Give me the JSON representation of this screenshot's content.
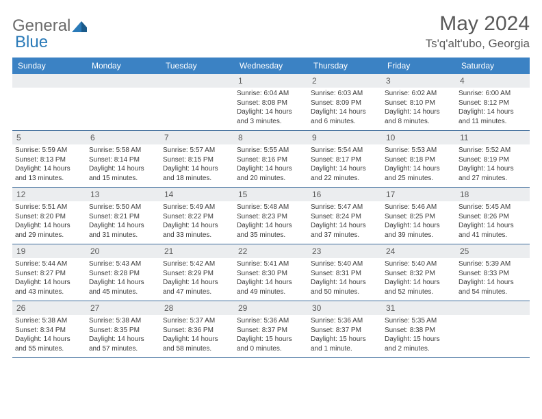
{
  "brand": {
    "general": "General",
    "blue": "Blue"
  },
  "title": {
    "month": "May 2024",
    "location": "Ts'q'alt'ubo, Georgia"
  },
  "colors": {
    "header_bg": "#3b82c4",
    "header_text": "#ffffff",
    "daynum_bg": "#ebedef",
    "text_gray": "#5a5a5a",
    "body_text": "#3a3a3a",
    "week_border": "#3b6a9a",
    "brand_gray": "#6b6b6b",
    "brand_blue": "#2a7ab8"
  },
  "dayNames": [
    "Sunday",
    "Monday",
    "Tuesday",
    "Wednesday",
    "Thursday",
    "Friday",
    "Saturday"
  ],
  "weeks": [
    [
      null,
      null,
      null,
      {
        "n": "1",
        "sr": "Sunrise: 6:04 AM",
        "ss": "Sunset: 8:08 PM",
        "d1": "Daylight: 14 hours",
        "d2": "and 3 minutes."
      },
      {
        "n": "2",
        "sr": "Sunrise: 6:03 AM",
        "ss": "Sunset: 8:09 PM",
        "d1": "Daylight: 14 hours",
        "d2": "and 6 minutes."
      },
      {
        "n": "3",
        "sr": "Sunrise: 6:02 AM",
        "ss": "Sunset: 8:10 PM",
        "d1": "Daylight: 14 hours",
        "d2": "and 8 minutes."
      },
      {
        "n": "4",
        "sr": "Sunrise: 6:00 AM",
        "ss": "Sunset: 8:12 PM",
        "d1": "Daylight: 14 hours",
        "d2": "and 11 minutes."
      }
    ],
    [
      {
        "n": "5",
        "sr": "Sunrise: 5:59 AM",
        "ss": "Sunset: 8:13 PM",
        "d1": "Daylight: 14 hours",
        "d2": "and 13 minutes."
      },
      {
        "n": "6",
        "sr": "Sunrise: 5:58 AM",
        "ss": "Sunset: 8:14 PM",
        "d1": "Daylight: 14 hours",
        "d2": "and 15 minutes."
      },
      {
        "n": "7",
        "sr": "Sunrise: 5:57 AM",
        "ss": "Sunset: 8:15 PM",
        "d1": "Daylight: 14 hours",
        "d2": "and 18 minutes."
      },
      {
        "n": "8",
        "sr": "Sunrise: 5:55 AM",
        "ss": "Sunset: 8:16 PM",
        "d1": "Daylight: 14 hours",
        "d2": "and 20 minutes."
      },
      {
        "n": "9",
        "sr": "Sunrise: 5:54 AM",
        "ss": "Sunset: 8:17 PM",
        "d1": "Daylight: 14 hours",
        "d2": "and 22 minutes."
      },
      {
        "n": "10",
        "sr": "Sunrise: 5:53 AM",
        "ss": "Sunset: 8:18 PM",
        "d1": "Daylight: 14 hours",
        "d2": "and 25 minutes."
      },
      {
        "n": "11",
        "sr": "Sunrise: 5:52 AM",
        "ss": "Sunset: 8:19 PM",
        "d1": "Daylight: 14 hours",
        "d2": "and 27 minutes."
      }
    ],
    [
      {
        "n": "12",
        "sr": "Sunrise: 5:51 AM",
        "ss": "Sunset: 8:20 PM",
        "d1": "Daylight: 14 hours",
        "d2": "and 29 minutes."
      },
      {
        "n": "13",
        "sr": "Sunrise: 5:50 AM",
        "ss": "Sunset: 8:21 PM",
        "d1": "Daylight: 14 hours",
        "d2": "and 31 minutes."
      },
      {
        "n": "14",
        "sr": "Sunrise: 5:49 AM",
        "ss": "Sunset: 8:22 PM",
        "d1": "Daylight: 14 hours",
        "d2": "and 33 minutes."
      },
      {
        "n": "15",
        "sr": "Sunrise: 5:48 AM",
        "ss": "Sunset: 8:23 PM",
        "d1": "Daylight: 14 hours",
        "d2": "and 35 minutes."
      },
      {
        "n": "16",
        "sr": "Sunrise: 5:47 AM",
        "ss": "Sunset: 8:24 PM",
        "d1": "Daylight: 14 hours",
        "d2": "and 37 minutes."
      },
      {
        "n": "17",
        "sr": "Sunrise: 5:46 AM",
        "ss": "Sunset: 8:25 PM",
        "d1": "Daylight: 14 hours",
        "d2": "and 39 minutes."
      },
      {
        "n": "18",
        "sr": "Sunrise: 5:45 AM",
        "ss": "Sunset: 8:26 PM",
        "d1": "Daylight: 14 hours",
        "d2": "and 41 minutes."
      }
    ],
    [
      {
        "n": "19",
        "sr": "Sunrise: 5:44 AM",
        "ss": "Sunset: 8:27 PM",
        "d1": "Daylight: 14 hours",
        "d2": "and 43 minutes."
      },
      {
        "n": "20",
        "sr": "Sunrise: 5:43 AM",
        "ss": "Sunset: 8:28 PM",
        "d1": "Daylight: 14 hours",
        "d2": "and 45 minutes."
      },
      {
        "n": "21",
        "sr": "Sunrise: 5:42 AM",
        "ss": "Sunset: 8:29 PM",
        "d1": "Daylight: 14 hours",
        "d2": "and 47 minutes."
      },
      {
        "n": "22",
        "sr": "Sunrise: 5:41 AM",
        "ss": "Sunset: 8:30 PM",
        "d1": "Daylight: 14 hours",
        "d2": "and 49 minutes."
      },
      {
        "n": "23",
        "sr": "Sunrise: 5:40 AM",
        "ss": "Sunset: 8:31 PM",
        "d1": "Daylight: 14 hours",
        "d2": "and 50 minutes."
      },
      {
        "n": "24",
        "sr": "Sunrise: 5:40 AM",
        "ss": "Sunset: 8:32 PM",
        "d1": "Daylight: 14 hours",
        "d2": "and 52 minutes."
      },
      {
        "n": "25",
        "sr": "Sunrise: 5:39 AM",
        "ss": "Sunset: 8:33 PM",
        "d1": "Daylight: 14 hours",
        "d2": "and 54 minutes."
      }
    ],
    [
      {
        "n": "26",
        "sr": "Sunrise: 5:38 AM",
        "ss": "Sunset: 8:34 PM",
        "d1": "Daylight: 14 hours",
        "d2": "and 55 minutes."
      },
      {
        "n": "27",
        "sr": "Sunrise: 5:38 AM",
        "ss": "Sunset: 8:35 PM",
        "d1": "Daylight: 14 hours",
        "d2": "and 57 minutes."
      },
      {
        "n": "28",
        "sr": "Sunrise: 5:37 AM",
        "ss": "Sunset: 8:36 PM",
        "d1": "Daylight: 14 hours",
        "d2": "and 58 minutes."
      },
      {
        "n": "29",
        "sr": "Sunrise: 5:36 AM",
        "ss": "Sunset: 8:37 PM",
        "d1": "Daylight: 15 hours",
        "d2": "and 0 minutes."
      },
      {
        "n": "30",
        "sr": "Sunrise: 5:36 AM",
        "ss": "Sunset: 8:37 PM",
        "d1": "Daylight: 15 hours",
        "d2": "and 1 minute."
      },
      {
        "n": "31",
        "sr": "Sunrise: 5:35 AM",
        "ss": "Sunset: 8:38 PM",
        "d1": "Daylight: 15 hours",
        "d2": "and 2 minutes."
      },
      null
    ]
  ]
}
